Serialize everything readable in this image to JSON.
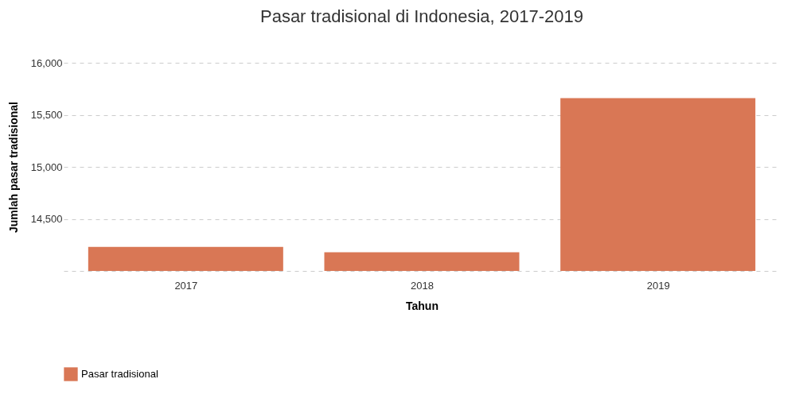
{
  "chart_data": {
    "type": "bar",
    "title": "Pasar tradisional di Indonesia, 2017-2019",
    "xlabel": "Tahun",
    "ylabel": "Jumlah pasar tradisional",
    "categories": [
      "2017",
      "2018",
      "2019"
    ],
    "series": [
      {
        "name": "Pasar tradisional",
        "color": "#d97755",
        "values": [
          14230,
          14180,
          15660
        ]
      }
    ],
    "ylim": [
      14000,
      16000
    ],
    "yticks": [
      {
        "value": 14000,
        "label": null
      },
      {
        "value": 14500,
        "label": "14,500"
      },
      {
        "value": 15000,
        "label": "15,000"
      },
      {
        "value": 15500,
        "label": "15,500"
      },
      {
        "value": 16000,
        "label": "16,000"
      }
    ],
    "grid": "y",
    "legend": "bottom left"
  }
}
